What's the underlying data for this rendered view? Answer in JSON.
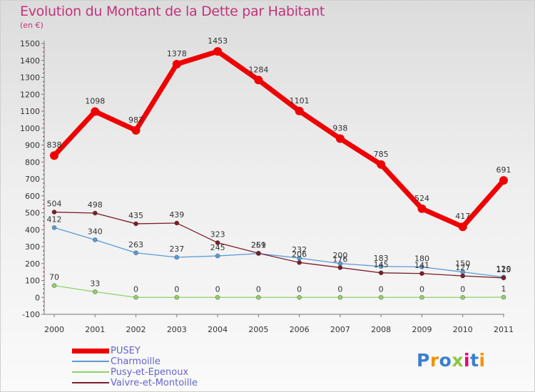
{
  "header": {
    "title": "Evolution du Montant de la Dette par Habitant",
    "subtitle": "(en €)"
  },
  "logo": {
    "text": "Proxiti",
    "colors": [
      "#3a7fd0",
      "#f39200",
      "#3a7fd0",
      "#8cc63f",
      "#e3007e",
      "#3a7fd0",
      "#f39200"
    ]
  },
  "colors": {
    "title": "#c2337a",
    "legend_text": "#6464cc"
  },
  "chart_data": {
    "type": "line",
    "x": [
      "2000",
      "2001",
      "2002",
      "2003",
      "2004",
      "2005",
      "2006",
      "2007",
      "2008",
      "2009",
      "2010",
      "2011"
    ],
    "yticks": [
      "-100",
      "0",
      "100",
      "200",
      "300",
      "400",
      "500",
      "600",
      "700",
      "800",
      "900",
      "1000",
      "1100",
      "1200",
      "1300",
      "1400",
      "1500"
    ],
    "ylim": [
      -100,
      1500
    ],
    "grid": false,
    "legend_position": "bottom-left",
    "series": [
      {
        "name": "PUSEY",
        "color": "#ee0000",
        "values": [
          838,
          1098,
          987,
          1378,
          1453,
          1284,
          1101,
          938,
          785,
          524,
          417,
          691
        ],
        "labels": [
          "838",
          "1098",
          "987",
          "1378",
          "1453",
          "1284",
          "1101",
          "938",
          "785",
          "524",
          "417",
          "691"
        ]
      },
      {
        "name": "Charmoille",
        "color": "#5b9bd5",
        "values": [
          412,
          340,
          263,
          237,
          245,
          259,
          232,
          200,
          183,
          180,
          150,
          120
        ],
        "labels": [
          "412",
          "340",
          "263",
          "237",
          "245",
          "259",
          "232",
          "200",
          "183",
          "180",
          "150",
          "120"
        ]
      },
      {
        "name": "Pusy-et-Epenoux",
        "color": "#8fd16a",
        "values": [
          70,
          33,
          0,
          0,
          0,
          0,
          0,
          0,
          0,
          0,
          0,
          1
        ],
        "labels": [
          "70",
          "33",
          "0",
          "0",
          "0",
          "0",
          "0",
          "0",
          "0",
          "0",
          "0",
          "1"
        ]
      },
      {
        "name": "Vaivre-et-Montoille",
        "color": "#7a1f2b",
        "values": [
          504,
          498,
          435,
          439,
          323,
          261,
          206,
          176,
          145,
          141,
          127,
          115
        ],
        "labels": [
          "504",
          "498",
          "435",
          "439",
          "323",
          "261",
          "206",
          "176",
          "145",
          "141",
          "127",
          "115"
        ]
      }
    ]
  }
}
